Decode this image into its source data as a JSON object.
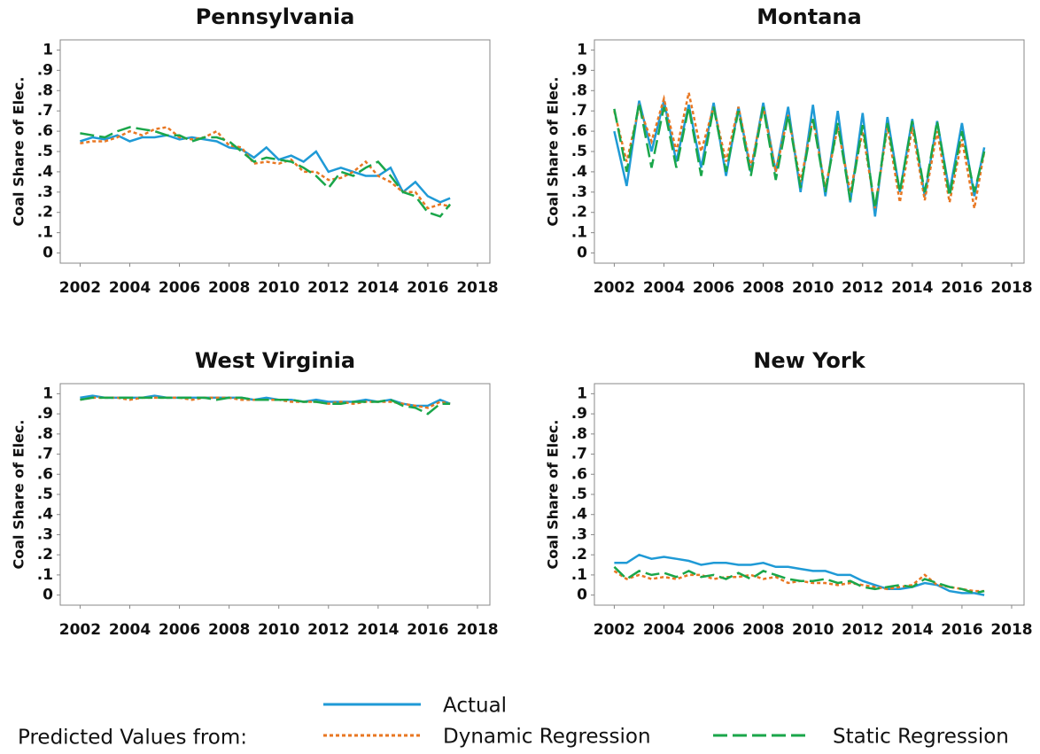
{
  "chart_data": [
    {
      "type": "line",
      "title": "Pennsylvania",
      "ylabel": "Coal Share of Elec.",
      "x": [
        2002,
        2002.5,
        2003,
        2003.5,
        2004,
        2004.5,
        2005,
        2005.5,
        2006,
        2006.5,
        2007,
        2007.5,
        2008,
        2008.5,
        2009,
        2009.5,
        2010,
        2010.5,
        2011,
        2011.5,
        2012,
        2012.5,
        2013,
        2013.5,
        2014,
        2014.5,
        2015,
        2015.5,
        2016,
        2016.5,
        2016.9
      ],
      "series": [
        {
          "name": "Actual",
          "color": "#1f9ad6",
          "dash": "solid",
          "values": [
            0.55,
            0.57,
            0.56,
            0.58,
            0.55,
            0.57,
            0.57,
            0.58,
            0.56,
            0.57,
            0.56,
            0.55,
            0.52,
            0.51,
            0.47,
            0.52,
            0.46,
            0.48,
            0.45,
            0.5,
            0.4,
            0.42,
            0.4,
            0.38,
            0.38,
            0.42,
            0.3,
            0.35,
            0.28,
            0.25,
            0.27
          ]
        },
        {
          "name": "Dynamic Regression",
          "color": "#e87722",
          "dash": "dotted",
          "values": [
            0.54,
            0.55,
            0.55,
            0.57,
            0.6,
            0.58,
            0.61,
            0.62,
            0.57,
            0.56,
            0.57,
            0.6,
            0.53,
            0.52,
            0.44,
            0.45,
            0.44,
            0.46,
            0.4,
            0.4,
            0.36,
            0.37,
            0.4,
            0.45,
            0.38,
            0.35,
            0.3,
            0.3,
            0.22,
            0.24,
            0.23
          ]
        },
        {
          "name": "Static Regression",
          "color": "#1aa64a",
          "dash": "dashed",
          "values": [
            0.59,
            0.58,
            0.57,
            0.6,
            0.62,
            0.61,
            0.6,
            0.58,
            0.58,
            0.55,
            0.57,
            0.57,
            0.55,
            0.5,
            0.45,
            0.47,
            0.46,
            0.45,
            0.42,
            0.38,
            0.32,
            0.4,
            0.38,
            0.42,
            0.45,
            0.38,
            0.3,
            0.28,
            0.2,
            0.18,
            0.24
          ]
        }
      ],
      "xlim": [
        2001.2,
        2018.5
      ],
      "xticks": [
        2002,
        2004,
        2006,
        2008,
        2010,
        2012,
        2014,
        2016,
        2018
      ],
      "ylim": [
        -0.05,
        1.05
      ],
      "yticks": [
        0,
        {
          "value": 0.1,
          "label": ".1"
        },
        {
          "value": 0.2,
          "label": ".2"
        },
        {
          "value": 0.3,
          "label": ".3"
        },
        {
          "value": 0.4,
          "label": ".4"
        },
        {
          "value": 0.5,
          "label": ".5"
        },
        {
          "value": 0.6,
          "label": ".6"
        },
        {
          "value": 0.7,
          "label": ".7"
        },
        {
          "value": 0.8,
          "label": ".8"
        },
        {
          "value": 0.9,
          "label": ".9"
        },
        1
      ]
    },
    {
      "type": "line",
      "title": "Montana",
      "ylabel": "Coal Share of Elec.",
      "x": [
        2002,
        2002.5,
        2003,
        2003.5,
        2004,
        2004.5,
        2005,
        2005.5,
        2006,
        2006.5,
        2007,
        2007.5,
        2008,
        2008.5,
        2009,
        2009.5,
        2010,
        2010.5,
        2011,
        2011.5,
        2012,
        2012.5,
        2013,
        2013.5,
        2014,
        2014.5,
        2015,
        2015.5,
        2016,
        2016.5,
        2016.9
      ],
      "series": [
        {
          "name": "Actual",
          "color": "#1f9ad6",
          "dash": "solid",
          "values": [
            0.6,
            0.33,
            0.75,
            0.5,
            0.75,
            0.45,
            0.73,
            0.42,
            0.74,
            0.38,
            0.72,
            0.4,
            0.74,
            0.4,
            0.72,
            0.3,
            0.73,
            0.28,
            0.7,
            0.25,
            0.69,
            0.18,
            0.67,
            0.3,
            0.66,
            0.28,
            0.65,
            0.3,
            0.64,
            0.28,
            0.52
          ]
        },
        {
          "name": "Dynamic Regression",
          "color": "#e87722",
          "dash": "dotted",
          "values": [
            0.7,
            0.45,
            0.72,
            0.55,
            0.76,
            0.5,
            0.79,
            0.5,
            0.72,
            0.45,
            0.72,
            0.42,
            0.72,
            0.4,
            0.68,
            0.35,
            0.66,
            0.32,
            0.62,
            0.3,
            0.6,
            0.22,
            0.62,
            0.25,
            0.62,
            0.26,
            0.6,
            0.25,
            0.56,
            0.22,
            0.5
          ]
        },
        {
          "name": "Static Regression",
          "color": "#1aa64a",
          "dash": "dashed",
          "values": [
            0.71,
            0.4,
            0.74,
            0.42,
            0.72,
            0.42,
            0.72,
            0.38,
            0.72,
            0.4,
            0.7,
            0.38,
            0.72,
            0.36,
            0.68,
            0.32,
            0.66,
            0.3,
            0.64,
            0.26,
            0.63,
            0.22,
            0.64,
            0.3,
            0.65,
            0.3,
            0.65,
            0.28,
            0.6,
            0.3,
            0.5
          ]
        }
      ],
      "xlim": [
        2001.2,
        2018.5
      ],
      "xticks": [
        2002,
        2004,
        2006,
        2008,
        2010,
        2012,
        2014,
        2016,
        2018
      ],
      "ylim": [
        -0.05,
        1.05
      ],
      "yticks": [
        0,
        {
          "value": 0.1,
          "label": ".1"
        },
        {
          "value": 0.2,
          "label": ".2"
        },
        {
          "value": 0.3,
          "label": ".3"
        },
        {
          "value": 0.4,
          "label": ".4"
        },
        {
          "value": 0.5,
          "label": ".5"
        },
        {
          "value": 0.6,
          "label": ".6"
        },
        {
          "value": 0.7,
          "label": ".7"
        },
        {
          "value": 0.8,
          "label": ".8"
        },
        {
          "value": 0.9,
          "label": ".9"
        },
        1
      ]
    },
    {
      "type": "line",
      "title": "West Virginia",
      "ylabel": "Coal Share of Elec.",
      "x": [
        2002,
        2002.5,
        2003,
        2003.5,
        2004,
        2004.5,
        2005,
        2005.5,
        2006,
        2006.5,
        2007,
        2007.5,
        2008,
        2008.5,
        2009,
        2009.5,
        2010,
        2010.5,
        2011,
        2011.5,
        2012,
        2012.5,
        2013,
        2013.5,
        2014,
        2014.5,
        2015,
        2015.5,
        2016,
        2016.5,
        2016.9
      ],
      "series": [
        {
          "name": "Actual",
          "color": "#1f9ad6",
          "dash": "solid",
          "values": [
            0.98,
            0.99,
            0.98,
            0.98,
            0.98,
            0.98,
            0.99,
            0.98,
            0.98,
            0.98,
            0.98,
            0.98,
            0.98,
            0.98,
            0.97,
            0.98,
            0.97,
            0.97,
            0.96,
            0.97,
            0.96,
            0.96,
            0.96,
            0.97,
            0.96,
            0.97,
            0.95,
            0.94,
            0.94,
            0.97,
            0.95
          ]
        },
        {
          "name": "Dynamic Regression",
          "color": "#e87722",
          "dash": "dotted",
          "values": [
            0.97,
            0.98,
            0.98,
            0.98,
            0.97,
            0.98,
            0.98,
            0.98,
            0.98,
            0.97,
            0.98,
            0.98,
            0.98,
            0.97,
            0.97,
            0.97,
            0.97,
            0.96,
            0.96,
            0.96,
            0.95,
            0.96,
            0.95,
            0.96,
            0.96,
            0.96,
            0.95,
            0.94,
            0.93,
            0.96,
            0.95
          ]
        },
        {
          "name": "Static Regression",
          "color": "#1aa64a",
          "dash": "dashed",
          "values": [
            0.97,
            0.98,
            0.98,
            0.98,
            0.98,
            0.98,
            0.98,
            0.98,
            0.98,
            0.98,
            0.98,
            0.97,
            0.98,
            0.98,
            0.97,
            0.97,
            0.97,
            0.97,
            0.96,
            0.96,
            0.95,
            0.95,
            0.96,
            0.96,
            0.96,
            0.97,
            0.94,
            0.93,
            0.9,
            0.95,
            0.95
          ]
        }
      ],
      "xlim": [
        2001.2,
        2018.5
      ],
      "xticks": [
        2002,
        2004,
        2006,
        2008,
        2010,
        2012,
        2014,
        2016,
        2018
      ],
      "ylim": [
        -0.05,
        1.05
      ],
      "yticks": [
        0,
        {
          "value": 0.1,
          "label": ".1"
        },
        {
          "value": 0.2,
          "label": ".2"
        },
        {
          "value": 0.3,
          "label": ".3"
        },
        {
          "value": 0.4,
          "label": ".4"
        },
        {
          "value": 0.5,
          "label": ".5"
        },
        {
          "value": 0.6,
          "label": ".6"
        },
        {
          "value": 0.7,
          "label": ".7"
        },
        {
          "value": 0.8,
          "label": ".8"
        },
        {
          "value": 0.9,
          "label": ".9"
        },
        1
      ]
    },
    {
      "type": "line",
      "title": "New York",
      "ylabel": "Coal Share of Elec.",
      "x": [
        2002,
        2002.5,
        2003,
        2003.5,
        2004,
        2004.5,
        2005,
        2005.5,
        2006,
        2006.5,
        2007,
        2007.5,
        2008,
        2008.5,
        2009,
        2009.5,
        2010,
        2010.5,
        2011,
        2011.5,
        2012,
        2012.5,
        2013,
        2013.5,
        2014,
        2014.5,
        2015,
        2015.5,
        2016,
        2016.5,
        2016.9
      ],
      "series": [
        {
          "name": "Actual",
          "color": "#1f9ad6",
          "dash": "solid",
          "values": [
            0.16,
            0.16,
            0.2,
            0.18,
            0.19,
            0.18,
            0.17,
            0.15,
            0.16,
            0.16,
            0.15,
            0.15,
            0.16,
            0.14,
            0.14,
            0.13,
            0.12,
            0.12,
            0.1,
            0.1,
            0.07,
            0.05,
            0.03,
            0.03,
            0.04,
            0.06,
            0.05,
            0.02,
            0.01,
            0.01,
            0
          ]
        },
        {
          "name": "Dynamic Regression",
          "color": "#e87722",
          "dash": "dotted",
          "values": [
            0.12,
            0.08,
            0.1,
            0.08,
            0.09,
            0.08,
            0.1,
            0.1,
            0.08,
            0.09,
            0.09,
            0.1,
            0.08,
            0.09,
            0.06,
            0.07,
            0.06,
            0.06,
            0.05,
            0.06,
            0.05,
            0.04,
            0.03,
            0.04,
            0.05,
            0.1,
            0.05,
            0.04,
            0.03,
            0.02,
            0.02
          ]
        },
        {
          "name": "Static Regression",
          "color": "#1aa64a",
          "dash": "dashed",
          "values": [
            0.14,
            0.08,
            0.12,
            0.1,
            0.11,
            0.09,
            0.12,
            0.09,
            0.1,
            0.08,
            0.11,
            0.08,
            0.12,
            0.1,
            0.08,
            0.07,
            0.07,
            0.08,
            0.06,
            0.07,
            0.04,
            0.03,
            0.04,
            0.05,
            0.04,
            0.08,
            0.06,
            0.04,
            0.03,
            0.01,
            0.02
          ]
        }
      ],
      "xlim": [
        2001.2,
        2018.5
      ],
      "xticks": [
        2002,
        2004,
        2006,
        2008,
        2010,
        2012,
        2014,
        2016,
        2018
      ],
      "ylim": [
        -0.05,
        1.05
      ],
      "yticks": [
        0,
        {
          "value": 0.1,
          "label": ".1"
        },
        {
          "value": 0.2,
          "label": ".2"
        },
        {
          "value": 0.3,
          "label": ".3"
        },
        {
          "value": 0.4,
          "label": ".4"
        },
        {
          "value": 0.5,
          "label": ".5"
        },
        {
          "value": 0.6,
          "label": ".6"
        },
        {
          "value": 0.7,
          "label": ".7"
        },
        {
          "value": 0.8,
          "label": ".8"
        },
        {
          "value": 0.9,
          "label": ".9"
        },
        1
      ]
    }
  ],
  "legend_title": "Predicted Values from:"
}
